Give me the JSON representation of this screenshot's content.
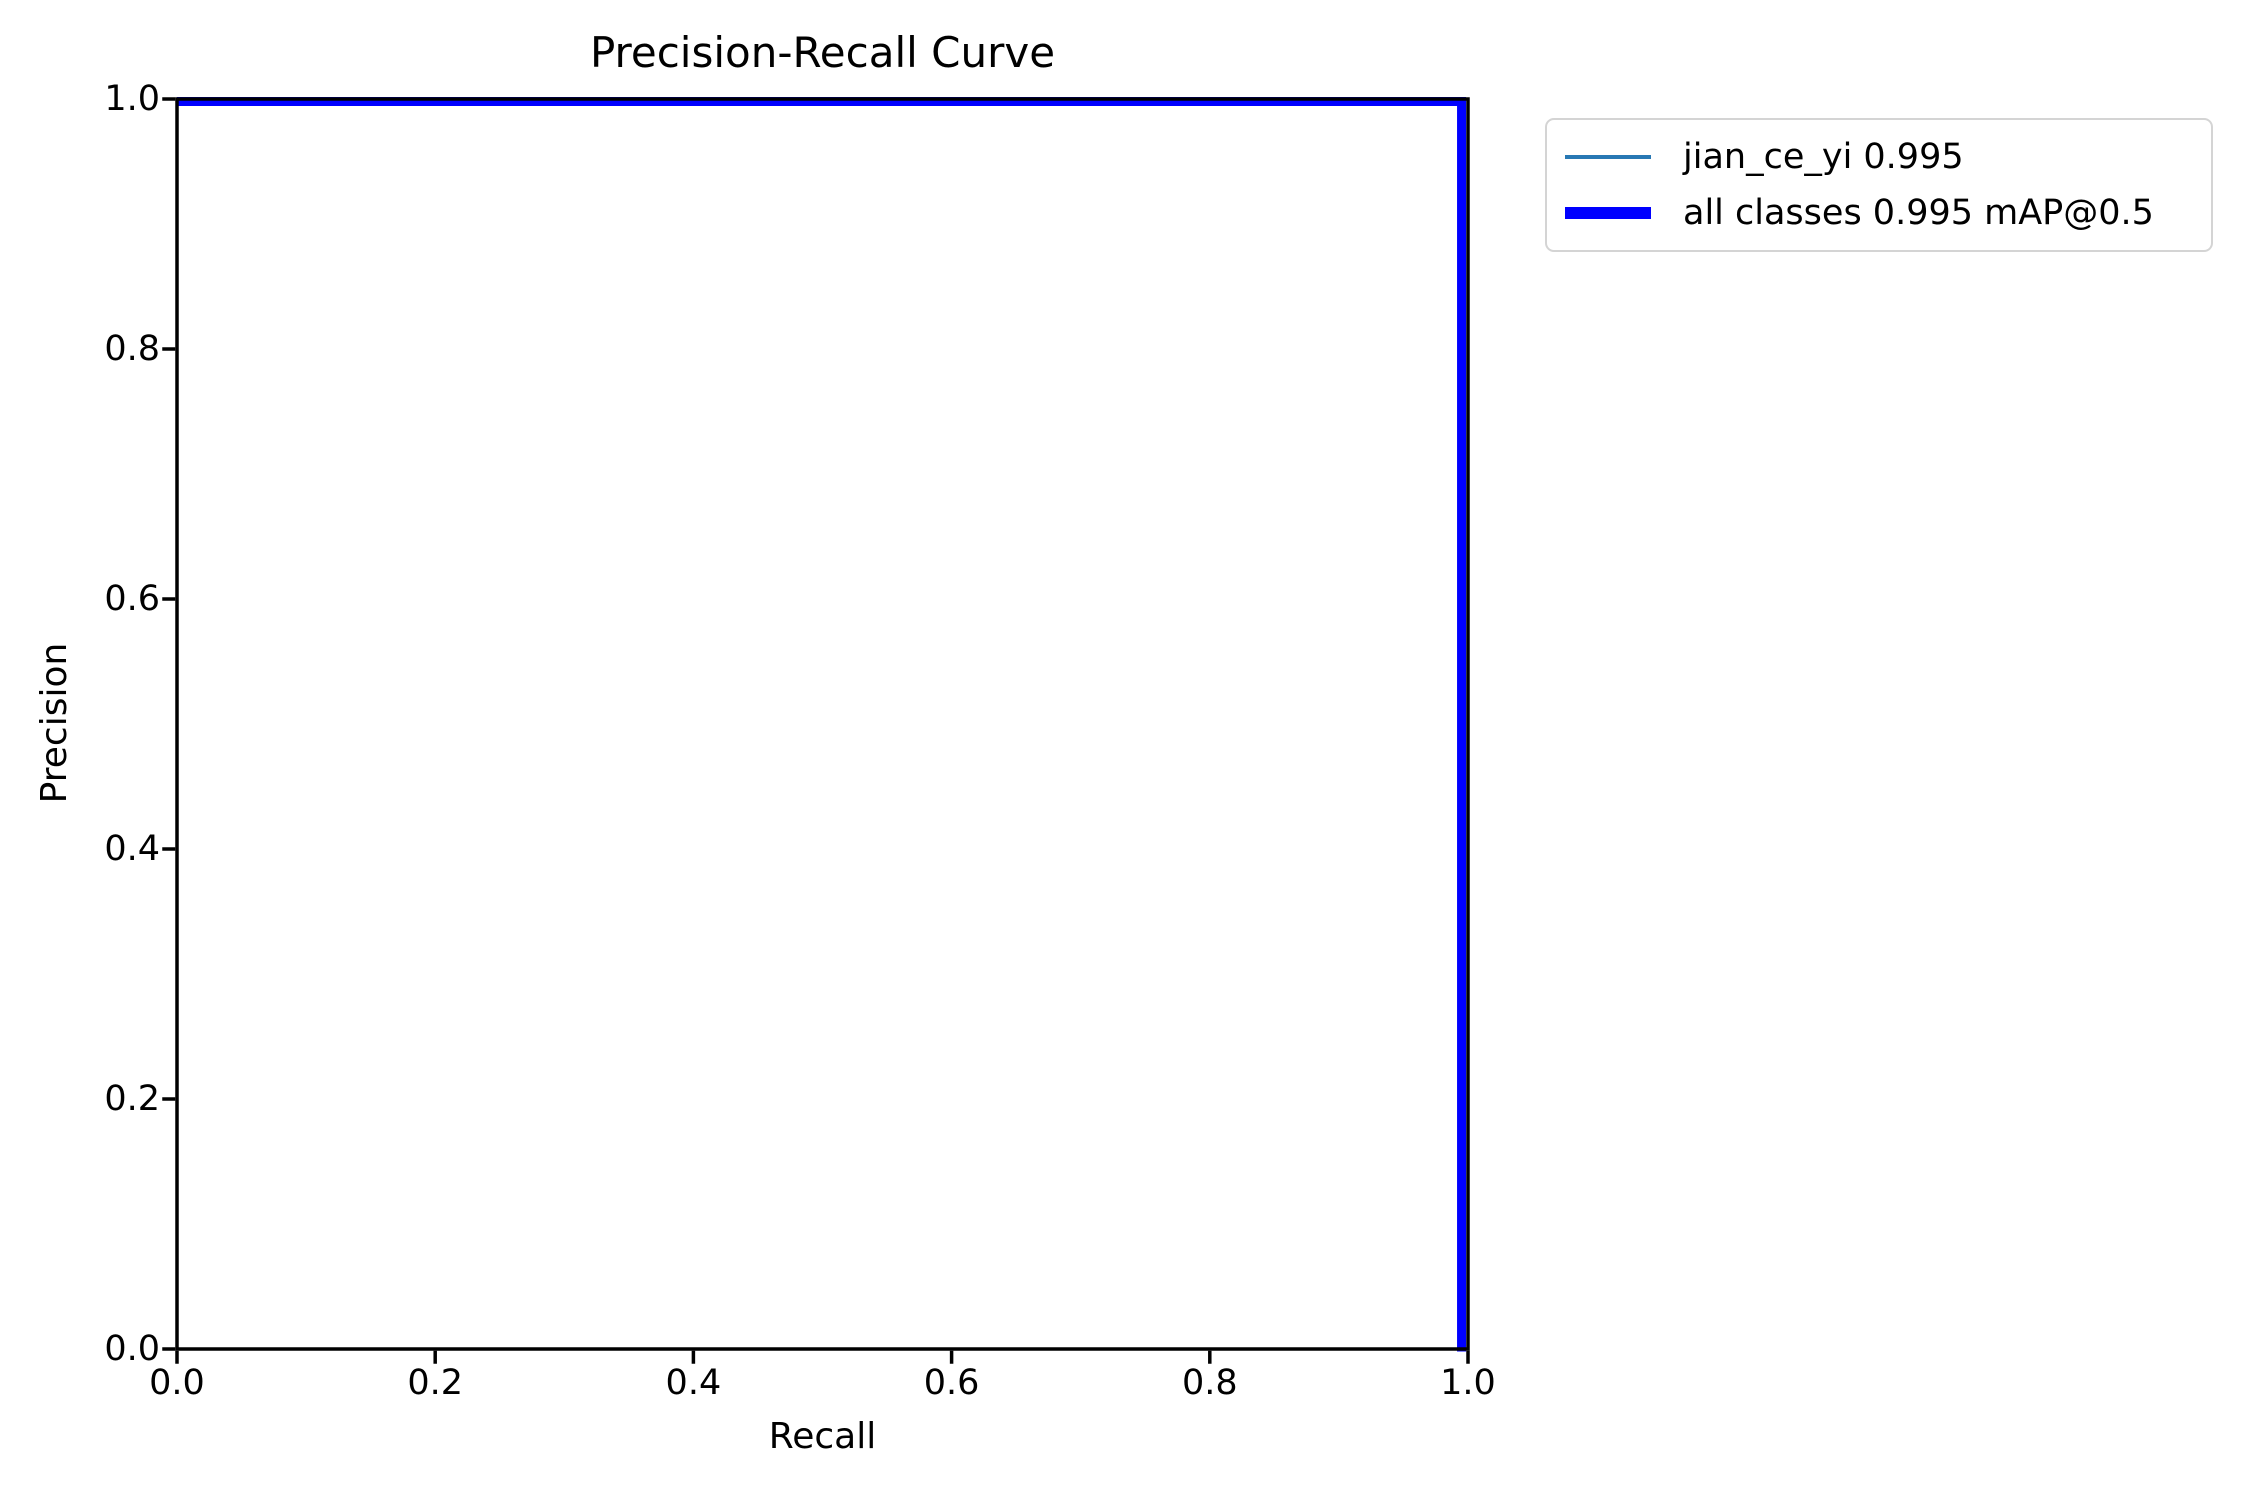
{
  "figure": {
    "background": "#ffffff",
    "axes_box_color": "#000000"
  },
  "chart_data": {
    "type": "line",
    "title": "Precision-Recall Curve",
    "xlabel": "Recall",
    "ylabel": "Precision",
    "xlim": [
      0.0,
      1.0
    ],
    "ylim": [
      0.0,
      1.0
    ],
    "xticks": [
      0.0,
      0.2,
      0.4,
      0.6,
      0.8,
      1.0
    ],
    "yticks": [
      0.0,
      0.2,
      0.4,
      0.6,
      0.8,
      1.0
    ],
    "grid": false,
    "legend_position": "outside-upper-right",
    "legend_border_color": "#d4d4d4",
    "series": [
      {
        "name": "jian_ce_yi 0.995",
        "color": "#2878b4",
        "line_width": 3.5,
        "x": [
          0.0,
          0.995,
          0.995
        ],
        "y": [
          1.0,
          1.0,
          0.0
        ]
      },
      {
        "name": "all classes 0.995 mAP@0.5",
        "color": "#0000ff",
        "line_width": 9,
        "x": [
          0.0,
          0.995,
          0.995
        ],
        "y": [
          1.0,
          1.0,
          0.0
        ]
      }
    ]
  }
}
